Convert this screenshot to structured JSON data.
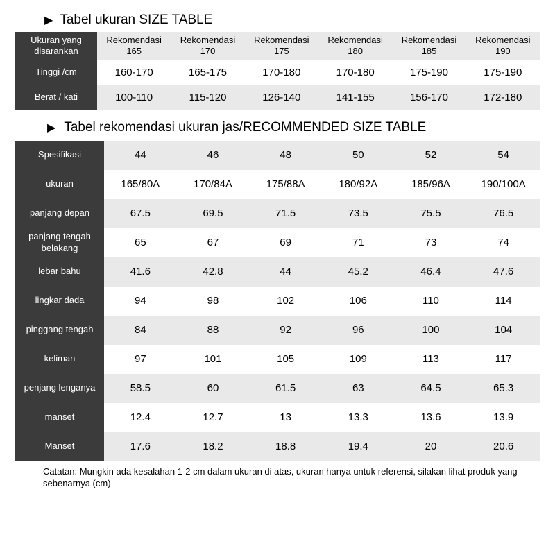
{
  "heading1": "Tabel ukuran SIZE TABLE",
  "heading2": "Tabel rekomendasi ukuran jas/RECOMMENDED SIZE TABLE",
  "table1": {
    "header_label": "Ukuran yang disarankan",
    "columns": [
      "Rekomendasi 165",
      "Rekomendasi 170",
      "Rekomendasi 175",
      "Rekomendasi 180",
      "Rekomendasi 185",
      "Rekomendasi 190"
    ],
    "rows": [
      {
        "label": "Tinggi /cm",
        "cells": [
          "160-170",
          "165-175",
          "170-180",
          "170-180",
          "175-190",
          "175-190"
        ]
      },
      {
        "label": "Berat / kati",
        "cells": [
          "100-110",
          "115-120",
          "126-140",
          "141-155",
          "156-170",
          "172-180"
        ]
      }
    ],
    "header_bg": "#e9e9e9",
    "label_bg": "#3b3b3b",
    "label_fg": "#ffffff",
    "row_bg_even": "#ffffff",
    "row_bg_odd": "#e9e9e9",
    "cell_fontsize": 15,
    "header_fontsize": 13
  },
  "table2": {
    "rows": [
      {
        "label": "Spesifikasi",
        "cells": [
          "44",
          "46",
          "48",
          "50",
          "52",
          "54"
        ]
      },
      {
        "label": "ukuran",
        "cells": [
          "165/80A",
          "170/84A",
          "175/88A",
          "180/92A",
          "185/96A",
          "190/100A"
        ]
      },
      {
        "label": "panjang depan",
        "cells": [
          "67.5",
          "69.5",
          "71.5",
          "73.5",
          "75.5",
          "76.5"
        ]
      },
      {
        "label": "panjang tengah belakang",
        "cells": [
          "65",
          "67",
          "69",
          "71",
          "73",
          "74"
        ]
      },
      {
        "label": "lebar bahu",
        "cells": [
          "41.6",
          "42.8",
          "44",
          "45.2",
          "46.4",
          "47.6"
        ]
      },
      {
        "label": "lingkar dada",
        "cells": [
          "94",
          "98",
          "102",
          "106",
          "110",
          "114"
        ]
      },
      {
        "label": "pinggang tengah",
        "cells": [
          "84",
          "88",
          "92",
          "96",
          "100",
          "104"
        ]
      },
      {
        "label": "keliman",
        "cells": [
          "97",
          "101",
          "105",
          "109",
          "113",
          "117"
        ]
      },
      {
        "label": "penjang lenganya",
        "cells": [
          "58.5",
          "60",
          "61.5",
          "63",
          "64.5",
          "65.3"
        ]
      },
      {
        "label": "manset",
        "cells": [
          "12.4",
          "12.7",
          "13",
          "13.3",
          "13.6",
          "13.9"
        ]
      },
      {
        "label": "Manset",
        "cells": [
          "17.6",
          "18.2",
          "18.8",
          "19.4",
          "20",
          "20.6"
        ]
      }
    ],
    "label_bg": "#3b3b3b",
    "label_fg": "#ffffff",
    "row_bg_a": "#e9e9e9",
    "row_bg_b": "#ffffff",
    "cell_fontsize": 15,
    "label_fontsize": 13
  },
  "footnote": "Catatan: Mungkin ada kesalahan 1-2 cm dalam ukuran di atas, ukuran hanya untuk referensi, silakan lihat produk yang sebenarnya (cm)"
}
